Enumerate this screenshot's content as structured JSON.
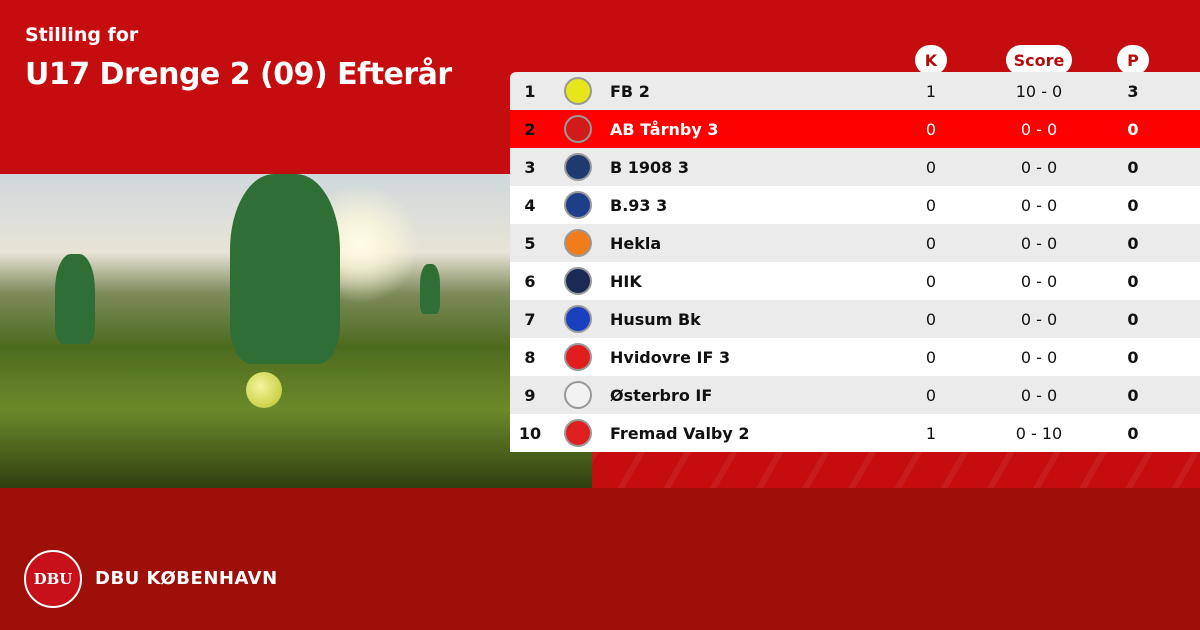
{
  "header": {
    "subtitle": "Stilling for",
    "title": "U17 Drenge 2 (09) Efterår"
  },
  "columns": {
    "k": "K",
    "score": "Score",
    "p": "P"
  },
  "rows": [
    {
      "rank": "1",
      "team": "FB 2",
      "k": "1",
      "score": "10 - 0",
      "p": "3",
      "logo_color": "#e6e61a",
      "highlight": false
    },
    {
      "rank": "2",
      "team": "AB Tårnby 3",
      "k": "0",
      "score": "0 - 0",
      "p": "0",
      "logo_color": "#d11b1b",
      "highlight": true
    },
    {
      "rank": "3",
      "team": "B 1908 3",
      "k": "0",
      "score": "0 - 0",
      "p": "0",
      "logo_color": "#1f3a6e",
      "highlight": false
    },
    {
      "rank": "4",
      "team": "B.93 3",
      "k": "0",
      "score": "0 - 0",
      "p": "0",
      "logo_color": "#1d3f8a",
      "highlight": false
    },
    {
      "rank": "5",
      "team": "Hekla",
      "k": "0",
      "score": "0 - 0",
      "p": "0",
      "logo_color": "#f07d1a",
      "highlight": false
    },
    {
      "rank": "6",
      "team": "HIK",
      "k": "0",
      "score": "0 - 0",
      "p": "0",
      "logo_color": "#1b2a55",
      "highlight": false
    },
    {
      "rank": "7",
      "team": "Husum Bk",
      "k": "0",
      "score": "0 - 0",
      "p": "0",
      "logo_color": "#1a3fbf",
      "highlight": false
    },
    {
      "rank": "8",
      "team": "Hvidovre IF 3",
      "k": "0",
      "score": "0 - 0",
      "p": "0",
      "logo_color": "#e21d1d",
      "highlight": false
    },
    {
      "rank": "9",
      "team": "Østerbro IF",
      "k": "0",
      "score": "0 - 0",
      "p": "0",
      "logo_color": "#f2f2f2",
      "highlight": false
    },
    {
      "rank": "10",
      "team": "Fremad Valby 2",
      "k": "1",
      "score": "0 - 10",
      "p": "0",
      "logo_color": "#e02020",
      "highlight": false
    }
  ],
  "footer": {
    "brand": "DBU KØBENHAVN",
    "logo_text": "DBU"
  },
  "colors": {
    "primary": "#c50d0f",
    "footer": "#9e0f09",
    "highlight": "#fd0000"
  }
}
